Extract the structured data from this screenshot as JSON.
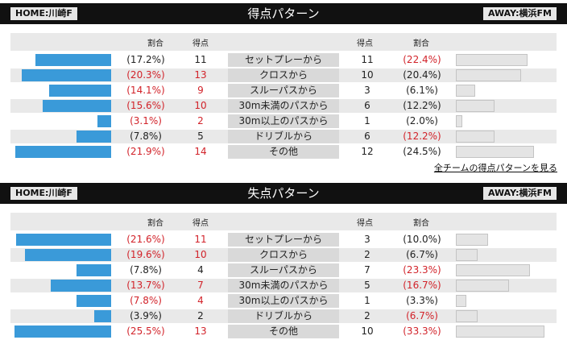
{
  "sections": [
    {
      "title": "得点パターン",
      "home_team": "HOME:川崎F",
      "away_team": "AWAY:横浜FM",
      "col_pct": "割合",
      "col_goals": "得点",
      "rows": [
        {
          "label": "セットプレーから",
          "home_pct": "(17.2%)",
          "home_goals": "11",
          "away_goals": "11",
          "away_pct": "(22.4%)",
          "home_share": 17.2,
          "away_share": 22.4,
          "home_red": false,
          "away_red": true
        },
        {
          "label": "クロスから",
          "home_pct": "(20.3%)",
          "home_goals": "13",
          "away_goals": "10",
          "away_pct": "(20.4%)",
          "home_share": 20.3,
          "away_share": 20.4,
          "home_red": true,
          "away_red": false
        },
        {
          "label": "スルーパスから",
          "home_pct": "(14.1%)",
          "home_goals": "9",
          "away_goals": "3",
          "away_pct": "(6.1%)",
          "home_share": 14.1,
          "away_share": 6.1,
          "home_red": true,
          "away_red": false
        },
        {
          "label": "30m未満のパスから",
          "home_pct": "(15.6%)",
          "home_goals": "10",
          "away_goals": "6",
          "away_pct": "(12.2%)",
          "home_share": 15.6,
          "away_share": 12.2,
          "home_red": true,
          "away_red": false
        },
        {
          "label": "30m以上のパスから",
          "home_pct": "(3.1%)",
          "home_goals": "2",
          "away_goals": "1",
          "away_pct": "(2.0%)",
          "home_share": 3.1,
          "away_share": 2.0,
          "home_red": true,
          "away_red": false
        },
        {
          "label": "ドリブルから",
          "home_pct": "(7.8%)",
          "home_goals": "5",
          "away_goals": "6",
          "away_pct": "(12.2%)",
          "home_share": 7.8,
          "away_share": 12.2,
          "home_red": false,
          "away_red": true
        },
        {
          "label": "その他",
          "home_pct": "(21.9%)",
          "home_goals": "14",
          "away_goals": "12",
          "away_pct": "(24.5%)",
          "home_share": 21.9,
          "away_share": 24.5,
          "home_red": true,
          "away_red": false
        }
      ]
    },
    {
      "title": "失点パターン",
      "home_team": "HOME:川崎F",
      "away_team": "AWAY:横浜FM",
      "col_pct": "割合",
      "col_goals": "得点",
      "rows": [
        {
          "label": "セットプレーから",
          "home_pct": "(21.6%)",
          "home_goals": "11",
          "away_goals": "3",
          "away_pct": "(10.0%)",
          "home_share": 21.6,
          "away_share": 10.0,
          "home_red": true,
          "away_red": false
        },
        {
          "label": "クロスから",
          "home_pct": "(19.6%)",
          "home_goals": "10",
          "away_goals": "2",
          "away_pct": "(6.7%)",
          "home_share": 19.6,
          "away_share": 6.7,
          "home_red": true,
          "away_red": false
        },
        {
          "label": "スルーパスから",
          "home_pct": "(7.8%)",
          "home_goals": "4",
          "away_goals": "7",
          "away_pct": "(23.3%)",
          "home_share": 7.8,
          "away_share": 23.3,
          "home_red": false,
          "away_red": true
        },
        {
          "label": "30m未満のパスから",
          "home_pct": "(13.7%)",
          "home_goals": "7",
          "away_goals": "5",
          "away_pct": "(16.7%)",
          "home_share": 13.7,
          "away_share": 16.7,
          "home_red": true,
          "away_red": true
        },
        {
          "label": "30m以上のパスから",
          "home_pct": "(7.8%)",
          "home_goals": "4",
          "away_goals": "1",
          "away_pct": "(3.3%)",
          "home_share": 7.8,
          "away_share": 3.3,
          "home_red": true,
          "away_red": false
        },
        {
          "label": "ドリブルから",
          "home_pct": "(3.9%)",
          "home_goals": "2",
          "away_goals": "2",
          "away_pct": "(6.7%)",
          "home_share": 3.9,
          "away_share": 6.7,
          "home_red": false,
          "away_red": true
        },
        {
          "label": "その他",
          "home_pct": "(25.5%)",
          "home_goals": "13",
          "away_goals": "10",
          "away_pct": "(33.3%)",
          "home_share": 25.5,
          "away_share": 33.3,
          "home_red": true,
          "away_red": true
        }
      ]
    }
  ],
  "all_teams_link": "全チームの得点パターンを見る",
  "colors": {
    "home_bar": "#3a9ad9",
    "away_bar": "#e4e4e4",
    "highlight": "#d2232a",
    "header": "#111111"
  }
}
